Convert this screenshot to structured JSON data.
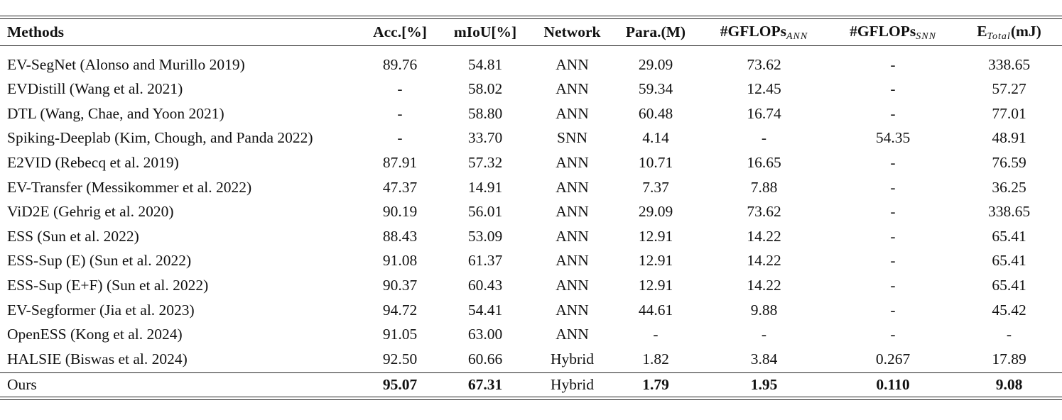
{
  "table": {
    "headers": {
      "methods": "Methods",
      "acc": "Acc.[%]",
      "miou": "mIoU[%]",
      "network": "Network",
      "para": "Para.(M)",
      "gflops_ann_main": "#GFLOPs",
      "gflops_ann_sub": "ANN",
      "gflops_snn_main": "#GFLOPs",
      "gflops_snn_sub": "SNN",
      "energy_main": "E",
      "energy_sub": "Total",
      "energy_unit": "(mJ)"
    },
    "rows": [
      [
        "EV-SegNet (Alonso and Murillo 2019)",
        "89.76",
        "54.81",
        "ANN",
        "29.09",
        "73.62",
        "-",
        "338.65"
      ],
      [
        "EVDistill (Wang et al. 2021)",
        "-",
        "58.02",
        "ANN",
        "59.34",
        "12.45",
        "-",
        "57.27"
      ],
      [
        "DTL (Wang, Chae, and Yoon 2021)",
        "-",
        "58.80",
        "ANN",
        "60.48",
        "16.74",
        "-",
        "77.01"
      ],
      [
        "Spiking-Deeplab (Kim, Chough, and Panda 2022)",
        "-",
        "33.70",
        "SNN",
        "4.14",
        "-",
        "54.35",
        "48.91"
      ],
      [
        "E2VID (Rebecq et al. 2019)",
        "87.91",
        "57.32",
        "ANN",
        "10.71",
        "16.65",
        "-",
        "76.59"
      ],
      [
        "EV-Transfer (Messikommer et al. 2022)",
        "47.37",
        "14.91",
        "ANN",
        "7.37",
        "7.88",
        "-",
        "36.25"
      ],
      [
        "ViD2E (Gehrig et al. 2020)",
        "90.19",
        "56.01",
        "ANN",
        "29.09",
        "73.62",
        "-",
        "338.65"
      ],
      [
        "ESS (Sun et al. 2022)",
        "88.43",
        "53.09",
        "ANN",
        "12.91",
        "14.22",
        "-",
        "65.41"
      ],
      [
        "ESS-Sup (E) (Sun et al. 2022)",
        "91.08",
        "61.37",
        "ANN",
        "12.91",
        "14.22",
        "-",
        "65.41"
      ],
      [
        "ESS-Sup (E+F) (Sun et al. 2022)",
        "90.37",
        "60.43",
        "ANN",
        "12.91",
        "14.22",
        "-",
        "65.41"
      ],
      [
        "EV-Segformer (Jia et al. 2023)",
        "94.72",
        "54.41",
        "ANN",
        "44.61",
        "9.88",
        "-",
        "45.42"
      ],
      [
        "OpenESS (Kong et al. 2024)",
        "91.05",
        "63.00",
        "ANN",
        "-",
        "-",
        "-",
        "-"
      ],
      [
        "HALSIE (Biswas et al. 2024)",
        "92.50",
        "60.66",
        "Hybrid",
        "1.82",
        "3.84",
        "0.267",
        "17.89"
      ]
    ],
    "ours": [
      "Ours",
      "95.07",
      "67.31",
      "Hybrid",
      "1.79",
      "1.95",
      "0.110",
      "9.08"
    ]
  }
}
